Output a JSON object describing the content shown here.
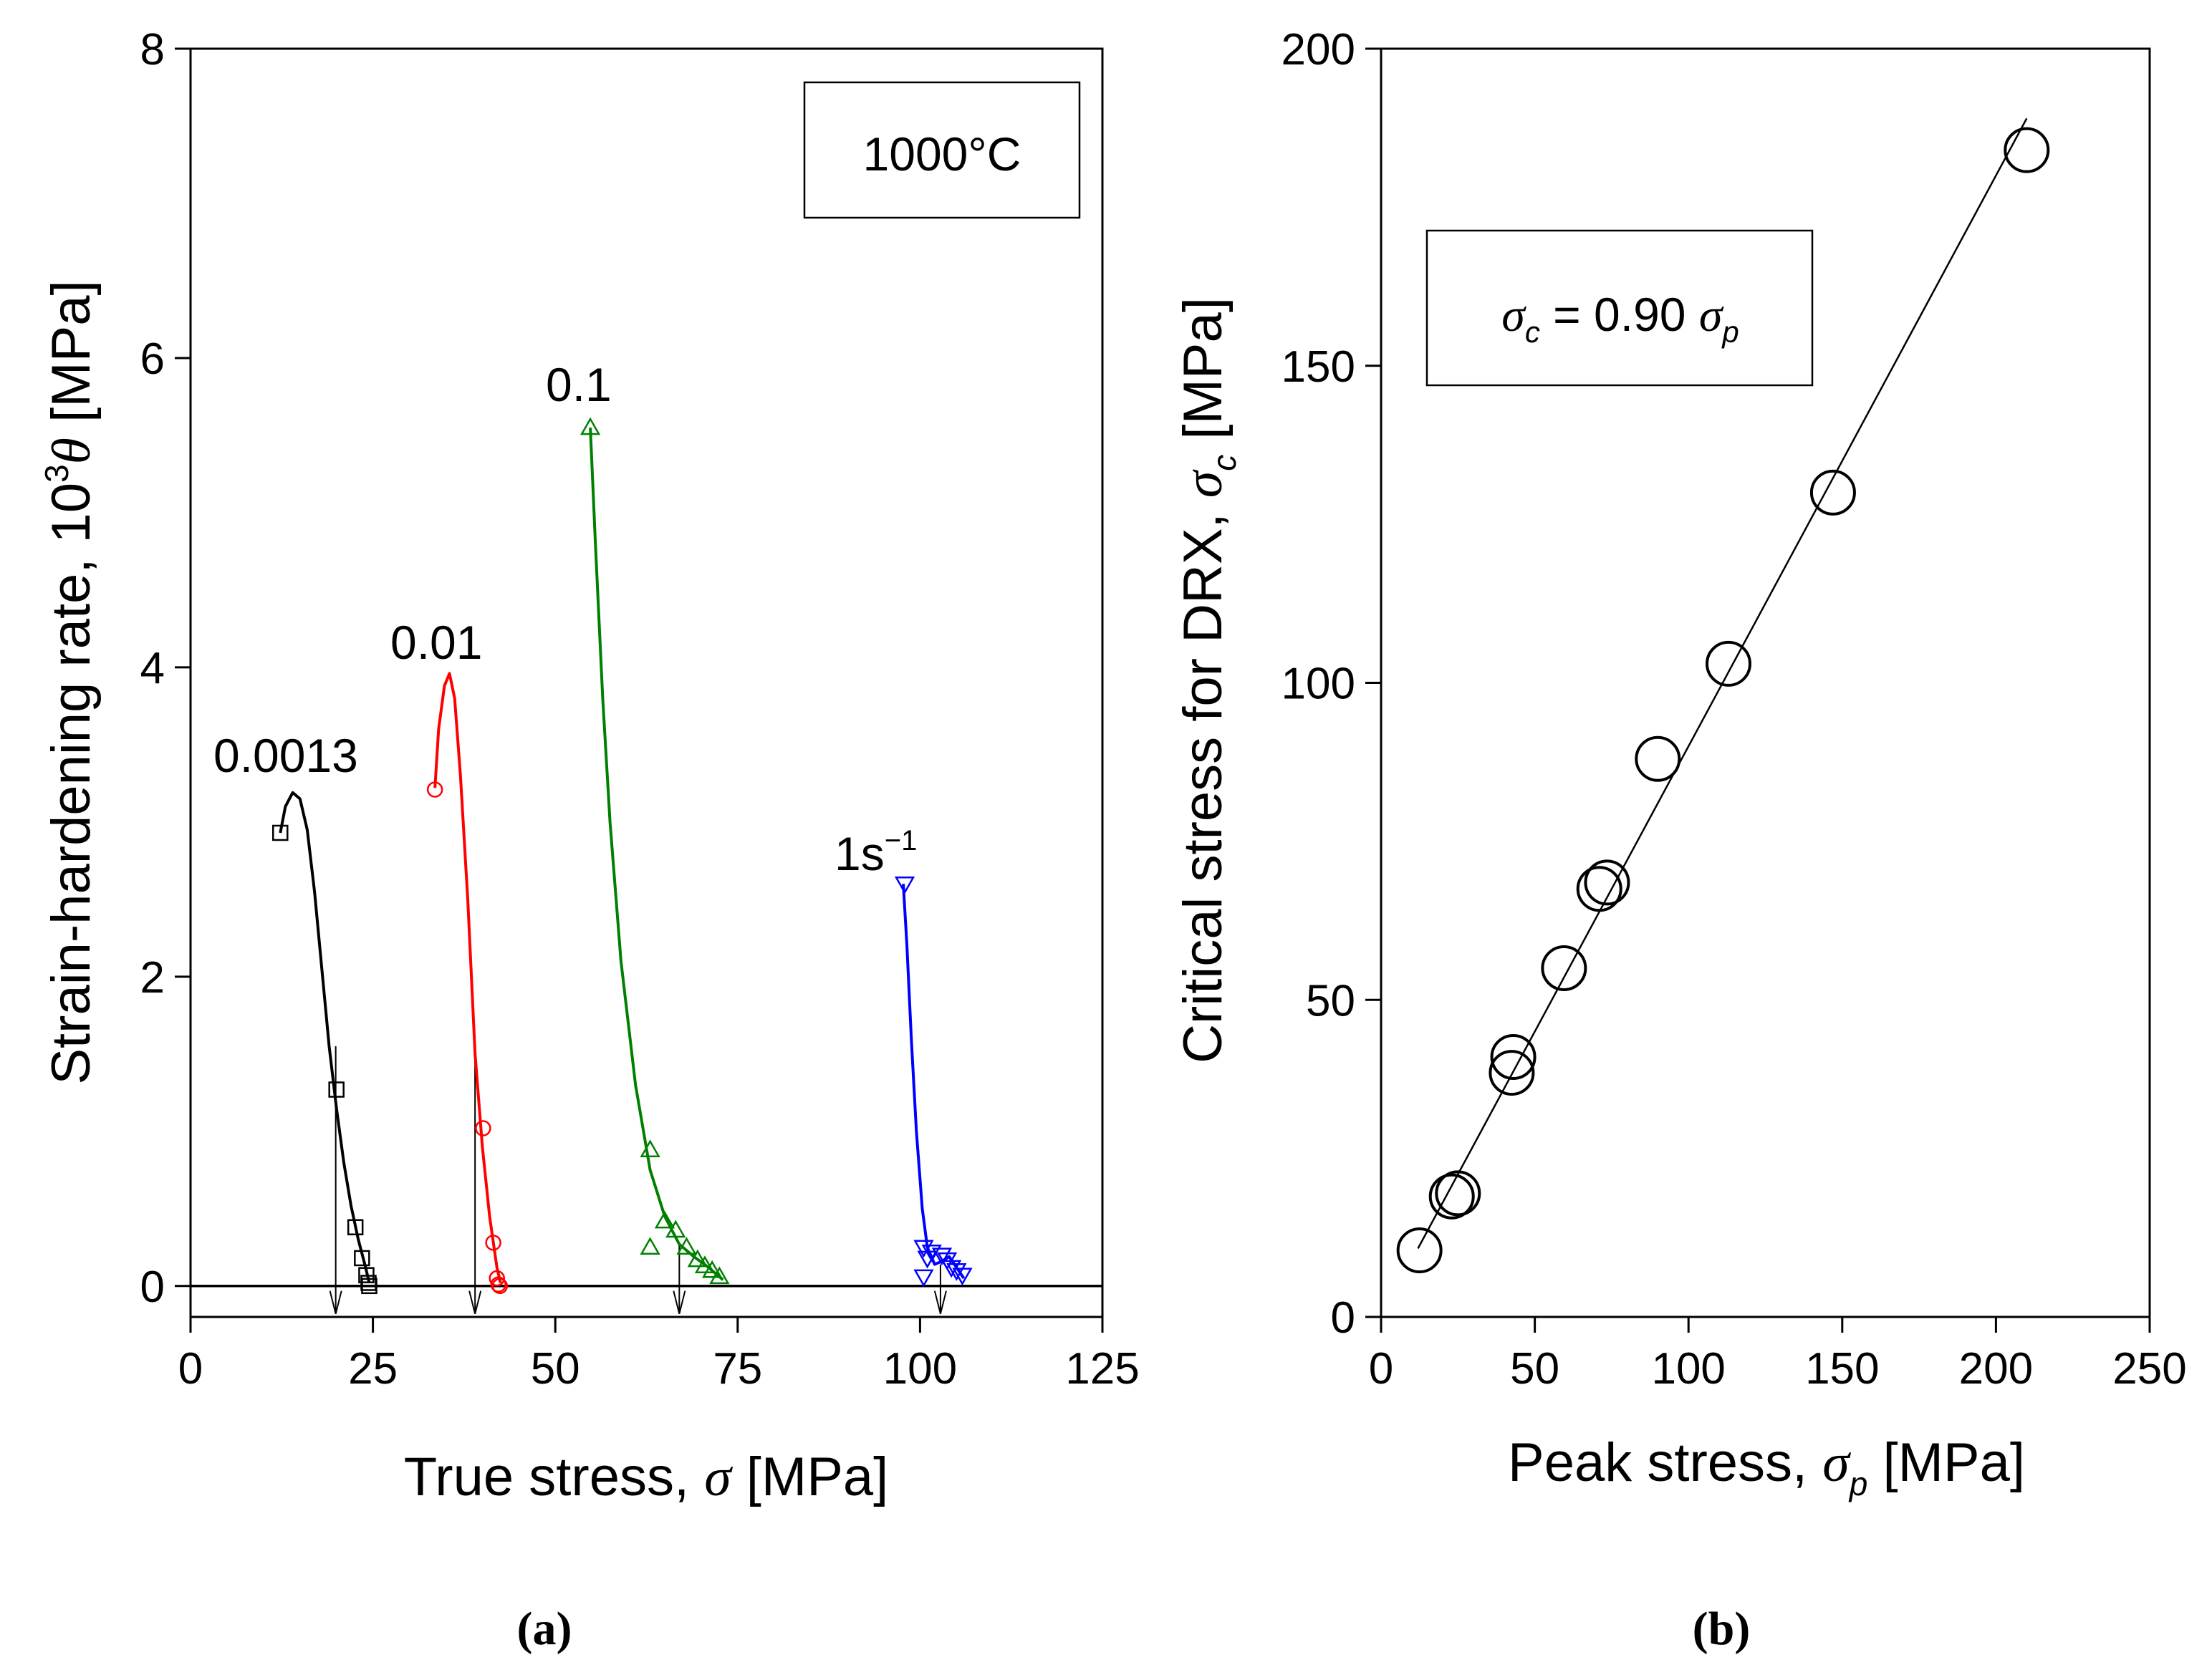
{
  "chart_data": [
    {
      "type": "line",
      "panel_label": "(a)",
      "title": "",
      "xlabel": "True stress, σ [MPa]",
      "xlabel_parts": {
        "main": "True stress, ",
        "symbol": "σ",
        "unit": " [MPa]"
      },
      "ylabel": "Strain-hardening rate, 10³θ [MPa]",
      "ylabel_parts": {
        "main": "Strain-hardening rate, 10",
        "sup": "3",
        "symbol": "θ",
        "unit": " [MPa]"
      },
      "xlim": [
        0,
        125
      ],
      "ylim": [
        -0.2,
        8
      ],
      "xticks": [
        0,
        25,
        50,
        75,
        100,
        125
      ],
      "yticks": [
        0,
        2,
        4,
        6,
        8
      ],
      "grid": false,
      "condition_box": "1000°C",
      "colors": {
        "s0": "#000000",
        "s1": "#ff0000",
        "s2": "#008000",
        "s3": "#0000ff"
      },
      "series": [
        {
          "name": "0.0013",
          "label_text": "0.0013",
          "color": "#000000",
          "marker": "square",
          "curve": [
            [
              12.3,
              2.93
            ],
            [
              13,
              3.1
            ],
            [
              14,
              3.19
            ],
            [
              15,
              3.15
            ],
            [
              16,
              2.95
            ],
            [
              17,
              2.55
            ],
            [
              18,
              2.05
            ],
            [
              19,
              1.55
            ],
            [
              20,
              1.15
            ],
            [
              21,
              0.8
            ],
            [
              22,
              0.52
            ],
            [
              23,
              0.3
            ],
            [
              24,
              0.12
            ],
            [
              24.5,
              0.02
            ]
          ],
          "markers": [
            [
              12.3,
              2.93
            ],
            [
              20,
              1.27
            ],
            [
              22.6,
              0.38
            ],
            [
              23.5,
              0.18
            ],
            [
              24.1,
              0.07
            ],
            [
              24.4,
              0.02
            ],
            [
              24.5,
              0.0
            ]
          ],
          "critical_stress": 19.9
        },
        {
          "name": "0.01",
          "label_text": "0.01",
          "color": "#ff0000",
          "marker": "circle",
          "curve": [
            [
              33.5,
              3.22
            ],
            [
              34,
              3.6
            ],
            [
              34.8,
              3.88
            ],
            [
              35.5,
              3.96
            ],
            [
              36.2,
              3.8
            ],
            [
              37,
              3.3
            ],
            [
              38,
              2.5
            ],
            [
              39,
              1.5
            ],
            [
              40,
              0.9
            ],
            [
              41,
              0.45
            ],
            [
              42,
              0.12
            ],
            [
              42.5,
              0.02
            ]
          ],
          "markers": [
            [
              33.5,
              3.21
            ],
            [
              40.1,
              1.02
            ],
            [
              41.5,
              0.28
            ],
            [
              42.0,
              0.05
            ],
            [
              42.2,
              0.01
            ],
            [
              42.4,
              0.0
            ]
          ],
          "critical_stress": 39.0
        },
        {
          "name": "0.1",
          "label_text": "0.1",
          "color": "#008000",
          "marker": "triangle-up",
          "curve": [
            [
              54.8,
              5.55
            ],
            [
              55.5,
              4.8
            ],
            [
              56.5,
              3.8
            ],
            [
              57.5,
              3.0
            ],
            [
              59,
              2.1
            ],
            [
              61,
              1.3
            ],
            [
              63,
              0.75
            ],
            [
              65,
              0.45
            ],
            [
              67,
              0.27
            ],
            [
              69,
              0.19
            ],
            [
              71,
              0.12
            ],
            [
              73,
              0.04
            ]
          ],
          "markers": [
            [
              54.8,
              5.55
            ],
            [
              63,
              0.88
            ],
            [
              63,
              0.25
            ],
            [
              65,
              0.42
            ],
            [
              66.5,
              0.36
            ],
            [
              68,
              0.25
            ],
            [
              69.5,
              0.17
            ],
            [
              70.5,
              0.13
            ],
            [
              71.5,
              0.1
            ],
            [
              72.5,
              0.06
            ]
          ],
          "critical_stress": 67.0
        },
        {
          "name": "1s⁻¹",
          "label_text": "1s",
          "label_sup": "−1",
          "color": "#0000ff",
          "marker": "triangle-down",
          "curve": [
            [
              97.7,
              2.6
            ],
            [
              98.2,
              2.2
            ],
            [
              98.8,
              1.6
            ],
            [
              99.5,
              1.0
            ],
            [
              100.3,
              0.5
            ],
            [
              101,
              0.25
            ],
            [
              102,
              0.14
            ],
            [
              103,
              0.16
            ],
            [
              104,
              0.19
            ],
            [
              105,
              0.12
            ],
            [
              106,
              0.05
            ]
          ],
          "markers": [
            [
              97.9,
              2.6
            ],
            [
              100.5,
              0.25
            ],
            [
              101.0,
              0.18
            ],
            [
              101.6,
              0.22
            ],
            [
              103,
              0.2
            ],
            [
              103.7,
              0.17
            ],
            [
              104.3,
              0.12
            ],
            [
              105,
              0.1
            ],
            [
              105.8,
              0.07
            ],
            [
              100.5,
              0.06
            ]
          ],
          "critical_stress": 102.8
        }
      ]
    },
    {
      "type": "scatter",
      "panel_label": "(b)",
      "title": "",
      "xlabel": "Peak stress, σp [MPa]",
      "xlabel_parts": {
        "main": "Peak stress, ",
        "symbol": "σ",
        "sub": "p",
        "unit": " [MPa]"
      },
      "ylabel": "Critical stress for DRX, σc [MPa]",
      "ylabel_parts": {
        "main": "Critical stress for DRX, ",
        "symbol": "σ",
        "sub": "c",
        "unit": " [MPa]"
      },
      "xlim": [
        0,
        250
      ],
      "ylim": [
        0,
        200
      ],
      "xticks": [
        0,
        50,
        100,
        150,
        200,
        250
      ],
      "yticks": [
        0,
        50,
        100,
        150,
        200
      ],
      "grid": false,
      "equation": {
        "lhs": "σ",
        "lhs_sub": "c",
        "mid": " = 0.90 ",
        "rhs": "σ",
        "rhs_sub": "p"
      },
      "fit": {
        "slope": 0.9,
        "intercept": 0,
        "x_range": [
          12,
          210
        ]
      },
      "color": "#000000",
      "points": [
        [
          12.5,
          10.5
        ],
        [
          23,
          19
        ],
        [
          25,
          19.5
        ],
        [
          42.5,
          38.5
        ],
        [
          43,
          41
        ],
        [
          59.5,
          55
        ],
        [
          71,
          67.5
        ],
        [
          73.5,
          68.5
        ],
        [
          90,
          88
        ],
        [
          113,
          103
        ],
        [
          147,
          130
        ],
        [
          210,
          184
        ]
      ]
    }
  ]
}
